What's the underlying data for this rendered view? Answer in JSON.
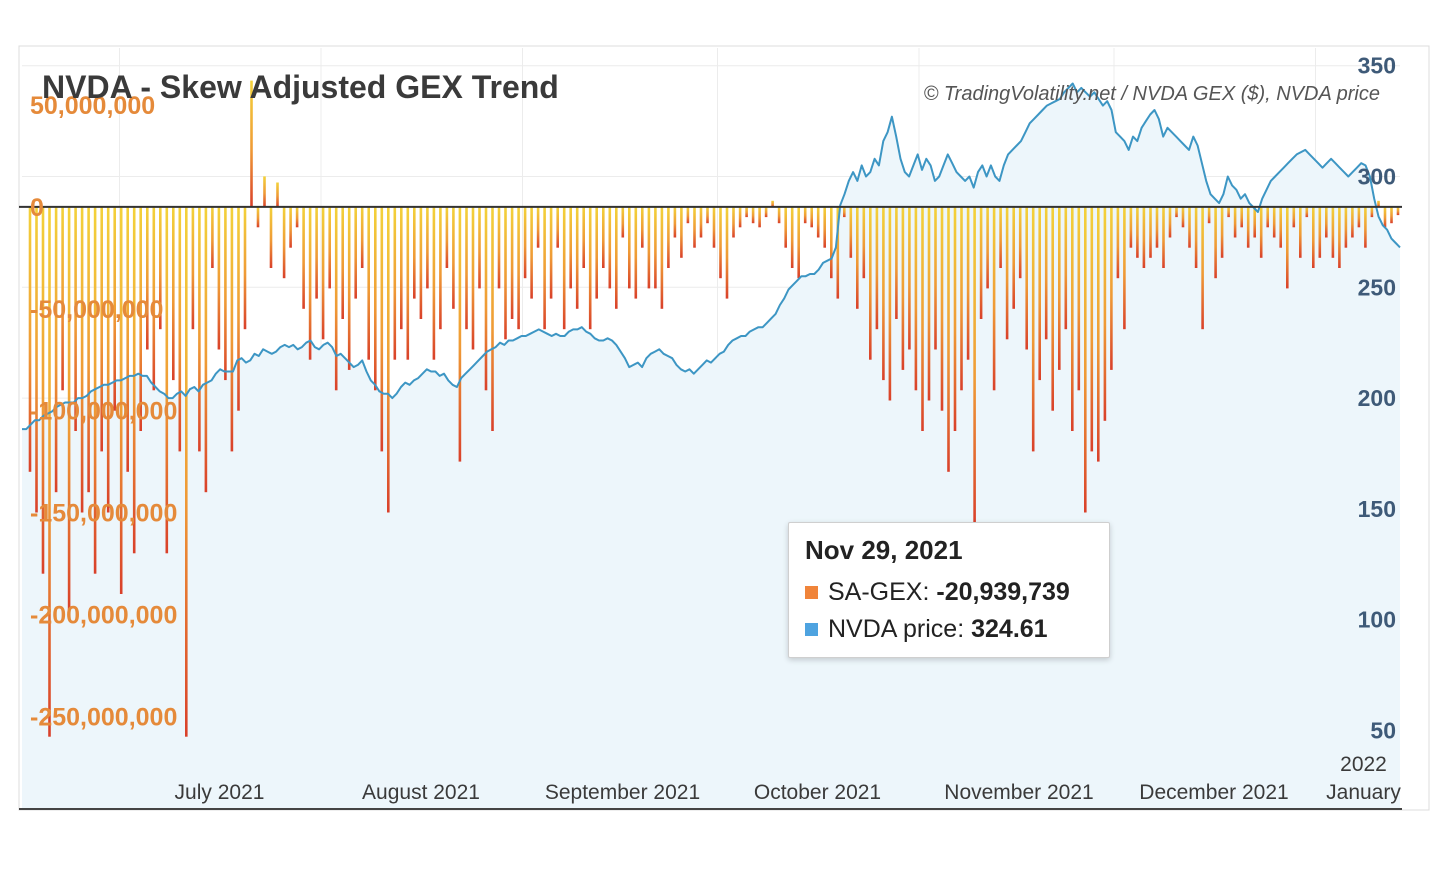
{
  "chart_data": {
    "type": "bar+line",
    "title": "NVDA - Skew Adjusted GEX Trend",
    "credit": "© TradingVolatility.net / NVDA GEX ($), NVDA price",
    "gex_axis": {
      "ylim": [
        -295000000,
        78000000
      ],
      "ticks": [
        {
          "value": 50000000,
          "label": "50,000,000"
        },
        {
          "value": 0,
          "label": "0"
        },
        {
          "value": -50000000,
          "label": "-50,000,000"
        },
        {
          "value": -100000000,
          "label": "-100,000,000"
        },
        {
          "value": -150000000,
          "label": "-150,000,000"
        },
        {
          "value": -200000000,
          "label": "-200,000,000"
        },
        {
          "value": -250000000,
          "label": "-250,000,000"
        }
      ]
    },
    "price_axis": {
      "ylim": [
        15,
        358
      ],
      "ticks": [
        {
          "value": 350,
          "label": "350"
        },
        {
          "value": 300,
          "label": "300"
        },
        {
          "value": 250,
          "label": "250"
        },
        {
          "value": 200,
          "label": "200"
        },
        {
          "value": 150,
          "label": "150"
        },
        {
          "value": 100,
          "label": "100"
        },
        {
          "value": 50,
          "label": "50"
        }
      ]
    },
    "x_axis": {
      "start": "2021-06-16",
      "end": "2022-01-14",
      "ticks": [
        {
          "date": "2021-07-01",
          "label": "July 2021"
        },
        {
          "date": "2021-08-01",
          "label": "August 2021"
        },
        {
          "date": "2021-09-01",
          "label": "September 2021"
        },
        {
          "date": "2021-10-01",
          "label": "October 2021"
        },
        {
          "date": "2021-11-01",
          "label": "November 2021"
        },
        {
          "date": "2021-12-01",
          "label": "December 2021"
        },
        {
          "date": "2022-01-01",
          "label": "January",
          "year": "2022"
        }
      ]
    },
    "series": [
      {
        "name": "SA-GEX",
        "type": "bar",
        "color_top": "#f3d23a",
        "color_bottom": "#d9402a",
        "values": [
          -130000000,
          -150000000,
          -180000000,
          -260000000,
          -140000000,
          -90000000,
          -200000000,
          -110000000,
          -150000000,
          -140000000,
          -180000000,
          -120000000,
          -150000000,
          -100000000,
          -190000000,
          -130000000,
          -170000000,
          -110000000,
          -70000000,
          -90000000,
          -60000000,
          -170000000,
          -85000000,
          -120000000,
          -260000000,
          -60000000,
          -120000000,
          -140000000,
          -30000000,
          -70000000,
          -85000000,
          -120000000,
          -100000000,
          -60000000,
          62000000,
          -10000000,
          15000000,
          -30000000,
          12000000,
          -35000000,
          -20000000,
          -10000000,
          -50000000,
          -75000000,
          -45000000,
          -65000000,
          -40000000,
          -90000000,
          -55000000,
          -80000000,
          -45000000,
          -30000000,
          -75000000,
          -90000000,
          -120000000,
          -150000000,
          -75000000,
          -60000000,
          -75000000,
          -45000000,
          -55000000,
          -40000000,
          -75000000,
          -60000000,
          -30000000,
          -50000000,
          -125000000,
          -60000000,
          -70000000,
          -40000000,
          -90000000,
          -110000000,
          -40000000,
          -65000000,
          -55000000,
          -60000000,
          -35000000,
          -45000000,
          -20000000,
          -60000000,
          -45000000,
          -20000000,
          -60000000,
          -40000000,
          -50000000,
          -30000000,
          -60000000,
          -45000000,
          -30000000,
          -40000000,
          -50000000,
          -15000000,
          -40000000,
          -45000000,
          -20000000,
          -40000000,
          -40000000,
          -50000000,
          -30000000,
          -15000000,
          -25000000,
          -8000000,
          -20000000,
          -15000000,
          -8000000,
          -20000000,
          -35000000,
          -45000000,
          -15000000,
          -10000000,
          -5000000,
          -8000000,
          -10000000,
          -5000000,
          3000000,
          -8000000,
          -20000000,
          -30000000,
          -35000000,
          -8000000,
          -10000000,
          -15000000,
          -20000000,
          -35000000,
          -45000000,
          -5000000,
          -25000000,
          -50000000,
          -35000000,
          -75000000,
          -60000000,
          -85000000,
          -95000000,
          -55000000,
          -80000000,
          -70000000,
          -90000000,
          -110000000,
          -95000000,
          -70000000,
          -100000000,
          -130000000,
          -110000000,
          -90000000,
          -75000000,
          -155000000,
          -55000000,
          -40000000,
          -90000000,
          -30000000,
          -65000000,
          -50000000,
          -35000000,
          -70000000,
          -120000000,
          -85000000,
          -65000000,
          -100000000,
          -80000000,
          -60000000,
          -110000000,
          -90000000,
          -150000000,
          -120000000,
          -125000000,
          -105000000,
          -80000000,
          -35000000,
          -60000000,
          -20000000,
          -25000000,
          -30000000,
          -25000000,
          -20000000,
          -30000000,
          -15000000,
          -5000000,
          -10000000,
          -20000000,
          -30000000,
          -60000000,
          -8000000,
          -35000000,
          -25000000,
          -5000000,
          -15000000,
          -10000000,
          -20000000,
          -15000000,
          -25000000,
          -10000000,
          -15000000,
          -20000000,
          -40000000,
          -10000000,
          -25000000,
          -5000000,
          -30000000,
          -25000000,
          -15000000,
          -25000000,
          -30000000,
          -20000000,
          -15000000,
          -10000000,
          -20000000,
          -5000000,
          3000000,
          -10000000,
          -8000000,
          -4000000
        ]
      },
      {
        "name": "NVDA price",
        "type": "line",
        "color": "#3d96c4",
        "fill": "#edf6fb",
        "values": [
          186,
          186,
          188,
          190,
          190,
          192,
          193,
          194,
          196,
          197,
          198,
          198,
          198,
          200,
          200,
          201,
          203,
          204,
          205,
          206,
          206,
          207,
          208,
          208,
          209,
          210,
          210,
          211,
          210,
          210,
          207,
          205,
          203,
          202,
          200,
          200,
          202,
          203,
          201,
          204,
          205,
          203,
          206,
          207,
          208,
          211,
          213,
          212,
          212,
          212,
          217,
          218,
          216,
          217,
          220,
          219,
          222,
          221,
          220,
          221,
          223,
          224,
          223,
          224,
          222,
          223,
          225,
          226,
          223,
          222,
          224,
          225,
          223,
          219,
          220,
          218,
          216,
          214,
          215,
          217,
          212,
          208,
          206,
          203,
          202,
          202,
          200,
          202,
          205,
          207,
          206,
          208,
          209,
          211,
          213,
          212,
          212,
          210,
          211,
          208,
          206,
          205,
          209,
          211,
          213,
          215,
          217,
          219,
          221,
          222,
          223,
          225,
          224,
          226,
          226,
          227,
          228,
          228,
          229,
          230,
          231,
          230,
          229,
          228,
          229,
          228,
          228,
          230,
          231,
          231,
          232,
          230,
          229,
          227,
          226,
          226,
          227,
          226,
          224,
          221,
          218,
          214,
          215,
          216,
          214,
          218,
          220,
          221,
          222,
          220,
          219,
          218,
          215,
          213,
          212,
          213,
          211,
          213,
          215,
          217,
          216,
          218,
          220,
          221,
          224,
          226,
          227,
          228,
          228,
          230,
          231,
          232,
          232,
          234,
          236,
          238,
          242,
          245,
          249,
          251,
          253,
          255,
          255,
          256,
          256,
          258,
          261,
          262,
          263,
          268,
          287,
          292,
          298,
          302,
          298,
          305,
          300,
          302,
          308,
          305,
          316,
          320,
          327,
          318,
          308,
          302,
          300,
          305,
          310,
          303,
          308,
          305,
          298,
          300,
          305,
          310,
          306,
          302,
          300,
          298,
          300,
          295,
          302,
          305,
          300,
          305,
          300,
          298,
          305,
          310,
          312,
          314,
          316,
          320,
          324,
          326,
          328,
          330,
          332,
          333,
          334,
          335,
          338,
          340,
          342,
          338,
          340,
          338,
          336,
          338,
          335,
          332,
          334,
          330,
          320,
          318,
          316,
          312,
          318,
          316,
          322,
          325,
          328,
          330,
          326,
          318,
          322,
          320,
          318,
          316,
          314,
          312,
          318,
          314,
          306,
          298,
          292,
          290,
          288,
          292,
          300,
          296,
          294,
          290,
          292,
          288,
          286,
          284,
          290,
          294,
          298,
          300,
          302,
          304,
          306,
          308,
          310,
          311,
          312,
          310,
          308,
          306,
          304,
          306,
          308,
          306,
          304,
          302,
          300,
          302,
          304,
          306,
          305,
          300,
          290,
          282,
          278,
          276,
          272,
          270,
          268
        ]
      }
    ],
    "tooltip": {
      "date": "Nov 29, 2021",
      "gex_label": "SA-GEX:",
      "gex_value": "-20,939,739",
      "price_label": "NVDA price:",
      "price_value": "324.61",
      "gex_color": "#f0843a",
      "price_color": "#4ea3e0"
    }
  }
}
